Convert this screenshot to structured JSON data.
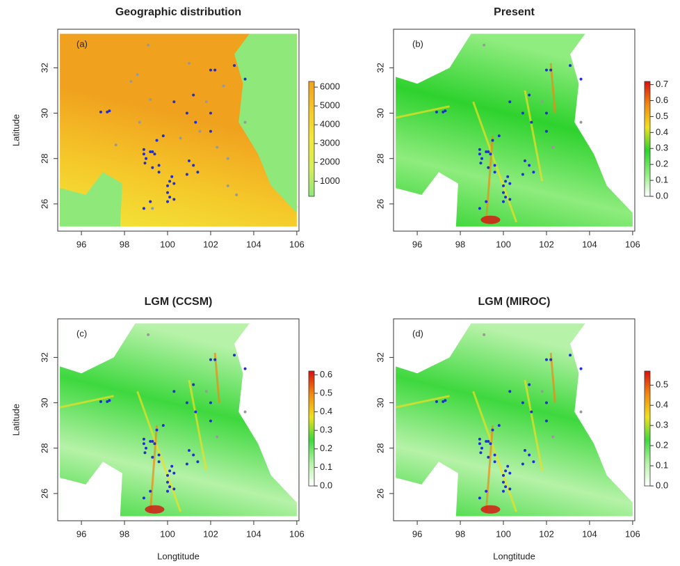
{
  "chart_data": [
    {
      "type": "map",
      "title": "Geographic distribution",
      "panel_label": "(a)",
      "ylabel": "Latitude",
      "xlim": [
        94.9,
        106.1
      ],
      "ylim": [
        24.8,
        33.7
      ],
      "xticks": [
        96,
        98,
        100,
        102,
        104,
        106
      ],
      "yticks": [
        26,
        28,
        30,
        32
      ],
      "colormap": [
        "#8ee87a",
        "#d6ee5a",
        "#f2e83a",
        "#f5c82a",
        "#f0a21e"
      ],
      "clim": [
        200,
        6300
      ],
      "cticks": [
        1000,
        2000,
        3000,
        4000,
        5000,
        6000
      ],
      "points": {
        "color": "#1f2fd0",
        "lon": [
          96.9,
          97.2,
          97.3,
          98.9,
          98.9,
          99,
          98.95,
          99.2,
          99.3,
          99.4,
          99.5,
          99.8,
          99.3,
          99.6,
          99.6,
          100,
          100.1,
          100.2,
          100,
          100.3,
          100.1,
          100,
          100.3,
          99.2,
          98.9,
          100.3,
          100.9,
          101.3,
          101.2,
          100.9,
          101.2,
          101.4,
          101,
          102,
          102,
          102,
          102.2,
          103.1,
          103.6
        ],
        "lat": [
          30.05,
          30.05,
          30.1,
          28.4,
          28.2,
          28,
          27.8,
          28.3,
          28.3,
          28.2,
          28.8,
          29,
          27.6,
          27.7,
          27.4,
          26.8,
          27,
          27.2,
          26.5,
          26.9,
          26.3,
          26.1,
          26.2,
          26.1,
          25.8,
          30.5,
          30,
          29.6,
          30.8,
          27.3,
          27.7,
          27.4,
          27.9,
          29.2,
          30,
          31.9,
          31.9,
          32.1,
          31.5
        ]
      },
      "absent": {
        "color": "#999999",
        "lon": [
          99.1,
          98.6,
          98.3,
          99.2,
          98.7,
          97.6,
          101,
          101.8,
          102.6,
          103.6,
          102.3,
          102.8,
          103.2,
          102.8,
          99.3,
          100.6,
          101.5
        ],
        "lat": [
          33,
          31.7,
          31.4,
          30.6,
          29.6,
          28.6,
          32.2,
          30.5,
          31.2,
          29.6,
          28.5,
          28,
          26.4,
          26.8,
          25.8,
          28.9,
          29.2
        ]
      }
    },
    {
      "type": "map",
      "title": "Present",
      "panel_label": "(b)",
      "xlim": [
        94.9,
        106.1
      ],
      "ylim": [
        24.8,
        33.7
      ],
      "xticks": [
        96,
        98,
        100,
        102,
        104,
        106
      ],
      "yticks": [
        26,
        28,
        30,
        32
      ],
      "colormap": [
        "#ffffff",
        "#8fec7e",
        "#2ed22e",
        "#f0e020",
        "#f08a10",
        "#d81010"
      ],
      "clim": [
        0,
        0.72
      ],
      "cticks": [
        0.0,
        0.1,
        0.2,
        0.3,
        0.4,
        0.5,
        0.6,
        0.7
      ],
      "cticklabels": [
        "0.0",
        "0.1",
        "0.2",
        "0.3",
        "0.4",
        "0.5",
        "0.6",
        "0.7"
      ],
      "points": {
        "color": "#1f2fd0",
        "lon": [
          96.9,
          97.2,
          97.3,
          98.9,
          98.9,
          99,
          98.95,
          99.2,
          99.3,
          99.4,
          99.5,
          99.8,
          99.3,
          99.6,
          99.6,
          100,
          100.1,
          100.2,
          100,
          100.3,
          100.1,
          100,
          100.3,
          99.2,
          98.9,
          100.3,
          100.9,
          101.3,
          101.2,
          100.9,
          101.2,
          101.4,
          101,
          102,
          102,
          102,
          102.2,
          103.1,
          103.6
        ],
        "lat": [
          30.05,
          30.05,
          30.1,
          28.4,
          28.2,
          28,
          27.8,
          28.3,
          28.3,
          28.2,
          28.8,
          29,
          27.6,
          27.7,
          27.4,
          26.8,
          27,
          27.2,
          26.5,
          26.9,
          26.3,
          26.1,
          26.2,
          26.1,
          25.8,
          30.5,
          30,
          29.6,
          30.8,
          27.3,
          27.7,
          27.4,
          27.9,
          29.2,
          30,
          31.9,
          31.9,
          32.1,
          31.5
        ]
      },
      "absent": {
        "color": "#999999",
        "lon": [
          99.1,
          101.8,
          103.6,
          102.3
        ],
        "lat": [
          33,
          30.5,
          29.6,
          28.5
        ]
      }
    },
    {
      "type": "map",
      "title": "LGM (CCSM)",
      "panel_label": "(c)",
      "ylabel": "Latitude",
      "xlabel": "Longtitude",
      "xlim": [
        94.9,
        106.1
      ],
      "ylim": [
        24.8,
        33.7
      ],
      "xticks": [
        96,
        98,
        100,
        102,
        104,
        106
      ],
      "yticks": [
        26,
        28,
        30,
        32
      ],
      "colormap": [
        "#ffffff",
        "#b6f2a8",
        "#3ed83e",
        "#f0e020",
        "#f08a10",
        "#d81010"
      ],
      "clim": [
        0,
        0.62
      ],
      "cticks": [
        0.0,
        0.1,
        0.2,
        0.3,
        0.4,
        0.5,
        0.6
      ],
      "cticklabels": [
        "0.0",
        "0.1",
        "0.2",
        "0.3",
        "0.4",
        "0.5",
        "0.6"
      ],
      "points": {
        "color": "#1f2fd0",
        "lon": [
          96.9,
          97.2,
          97.3,
          98.9,
          98.9,
          99,
          98.95,
          99.2,
          99.3,
          99.4,
          99.5,
          99.8,
          99.3,
          99.6,
          99.6,
          100,
          100.1,
          100.2,
          100,
          100.3,
          100.1,
          100,
          100.3,
          99.2,
          98.9,
          100.3,
          100.9,
          101.3,
          101.2,
          100.9,
          101.2,
          101.4,
          101,
          102,
          102,
          102,
          102.2,
          103.1,
          103.6
        ],
        "lat": [
          30.05,
          30.05,
          30.1,
          28.4,
          28.2,
          28,
          27.8,
          28.3,
          28.3,
          28.2,
          28.8,
          29,
          27.6,
          27.7,
          27.4,
          26.8,
          27,
          27.2,
          26.5,
          26.9,
          26.3,
          26.1,
          26.2,
          26.1,
          25.8,
          30.5,
          30,
          29.6,
          30.8,
          27.3,
          27.7,
          27.4,
          27.9,
          29.2,
          30,
          31.9,
          31.9,
          32.1,
          31.5
        ]
      },
      "absent": {
        "color": "#999999",
        "lon": [
          99.1,
          101.8,
          103.6,
          102.3
        ],
        "lat": [
          33,
          30.5,
          29.6,
          28.5
        ]
      }
    },
    {
      "type": "map",
      "title": "LGM (MIROC)",
      "panel_label": "(d)",
      "xlabel": "Longtitude",
      "xlim": [
        94.9,
        106.1
      ],
      "ylim": [
        24.8,
        33.7
      ],
      "xticks": [
        96,
        98,
        100,
        102,
        104,
        106
      ],
      "yticks": [
        26,
        28,
        30,
        32
      ],
      "colormap": [
        "#ffffff",
        "#b6f2a8",
        "#3ed83e",
        "#f0e020",
        "#f08a10",
        "#d81010"
      ],
      "clim": [
        0,
        0.57
      ],
      "cticks": [
        0.0,
        0.1,
        0.2,
        0.3,
        0.4,
        0.5
      ],
      "cticklabels": [
        "0.0",
        "0.1",
        "0.2",
        "0.3",
        "0.4",
        "0.5"
      ],
      "points": {
        "color": "#1f2fd0",
        "lon": [
          96.9,
          97.2,
          97.3,
          98.9,
          98.9,
          99,
          98.95,
          99.2,
          99.3,
          99.4,
          99.5,
          99.8,
          99.3,
          99.6,
          99.6,
          100,
          100.1,
          100.2,
          100,
          100.3,
          100.1,
          100,
          100.3,
          99.2,
          98.9,
          100.3,
          100.9,
          101.3,
          101.2,
          100.9,
          101.2,
          101.4,
          101,
          102,
          102,
          102,
          102.2,
          103.1,
          103.6
        ],
        "lat": [
          30.05,
          30.05,
          30.1,
          28.4,
          28.2,
          28,
          27.8,
          28.3,
          28.3,
          28.2,
          28.8,
          29,
          27.6,
          27.7,
          27.4,
          26.8,
          27,
          27.2,
          26.5,
          26.9,
          26.3,
          26.1,
          26.2,
          26.1,
          25.8,
          30.5,
          30,
          29.6,
          30.8,
          27.3,
          27.7,
          27.4,
          27.9,
          29.2,
          30,
          31.9,
          31.9,
          32.1,
          31.5
        ]
      },
      "absent": {
        "color": "#999999",
        "lon": [
          99.1,
          101.8,
          103.6,
          102.3
        ],
        "lat": [
          33,
          30.5,
          29.6,
          28.5
        ]
      }
    }
  ]
}
